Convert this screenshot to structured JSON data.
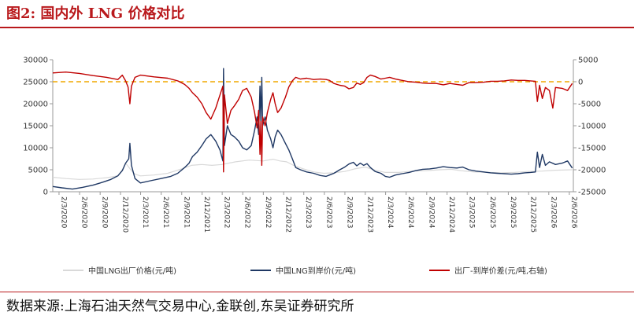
{
  "figure_title": "图2:  国内外 LNG 价格对比",
  "source_text": "数据来源:上海石油天然气交易中心,金联创,东吴证券研究所",
  "colors": {
    "title_red": "#b9191c",
    "ex_factory": "#d9d9d9",
    "landed": "#1f3864",
    "spread": "#c00000",
    "zero_line": "#f0a800"
  },
  "chart_data": {
    "type": "line",
    "title": "",
    "xlabel": "",
    "ylabel": "",
    "x_ticks": [
      "2/3/2020",
      "2/6/2020",
      "2/9/2020",
      "2/12/2020",
      "2/3/2021",
      "2/6/2021",
      "2/9/2021",
      "2/12/2021",
      "2/3/2022",
      "2/6/2022",
      "2/9/2022",
      "2/12/2022",
      "2/3/2023",
      "2/6/2023",
      "2/9/2023",
      "2/12/2023",
      "2/3/2024",
      "2/6/2024",
      "2/9/2024",
      "2/12/2024",
      "2/3/2025",
      "2/6/2025",
      "2/9/2025",
      "2/12/2025",
      "2/3/2026",
      "2/6/2026"
    ],
    "x_range": [
      "2020-02-03",
      "2026-06-20"
    ],
    "ylim_left": [
      0,
      30000
    ],
    "yticks_left": [
      "0",
      "5000",
      "10000",
      "15000",
      "20000",
      "25000",
      "30000"
    ],
    "ylim_right": [
      -25000,
      5000
    ],
    "yticks_right": [
      "-25000",
      "-20000",
      "-15000",
      "-10000",
      "-5000",
      "0",
      "5000"
    ],
    "legend_position": "bottom",
    "reference_line": {
      "axis": "right",
      "value": 0,
      "style": "dashed"
    },
    "series": [
      {
        "name": "中国LNG出厂价格(元/吨)",
        "axis": "left",
        "color": "#d9d9d9",
        "points": [
          [
            "2020-02-03",
            3300
          ],
          [
            "2020-04-01",
            3000
          ],
          [
            "2020-06-01",
            2800
          ],
          [
            "2020-08-01",
            2900
          ],
          [
            "2020-10-01",
            3200
          ],
          [
            "2020-11-20",
            3600
          ],
          [
            "2020-12-10",
            5000
          ],
          [
            "2020-12-25",
            6500
          ],
          [
            "2021-01-05",
            5800
          ],
          [
            "2021-01-20",
            4800
          ],
          [
            "2021-02-05",
            4000
          ],
          [
            "2021-03-01",
            3600
          ],
          [
            "2021-05-01",
            3800
          ],
          [
            "2021-07-01",
            4200
          ],
          [
            "2021-09-01",
            5200
          ],
          [
            "2021-10-15",
            6000
          ],
          [
            "2021-12-01",
            6200
          ],
          [
            "2022-01-15",
            6000
          ],
          [
            "2022-03-01",
            6200
          ],
          [
            "2022-05-01",
            6800
          ],
          [
            "2022-07-01",
            7200
          ],
          [
            "2022-09-01",
            7000
          ],
          [
            "2022-10-15",
            7400
          ],
          [
            "2022-11-15",
            7000
          ],
          [
            "2022-12-15",
            6800
          ],
          [
            "2023-01-15",
            6000
          ],
          [
            "2023-03-01",
            5200
          ],
          [
            "2023-04-15",
            4500
          ],
          [
            "2023-06-01",
            4200
          ],
          [
            "2023-07-15",
            4300
          ],
          [
            "2023-09-01",
            4600
          ],
          [
            "2023-10-15",
            5200
          ],
          [
            "2023-12-01",
            5600
          ],
          [
            "2024-01-15",
            4900
          ],
          [
            "2024-03-01",
            4400
          ],
          [
            "2024-05-01",
            4400
          ],
          [
            "2024-07-01",
            4700
          ],
          [
            "2024-09-01",
            4800
          ],
          [
            "2024-11-01",
            5000
          ],
          [
            "2024-12-20",
            5100
          ],
          [
            "2025-02-01",
            4800
          ],
          [
            "2025-04-01",
            4500
          ],
          [
            "2025-06-01",
            4400
          ],
          [
            "2025-08-01",
            4300
          ],
          [
            "2025-10-01",
            4400
          ],
          [
            "2025-12-01",
            4600
          ],
          [
            "2026-02-01",
            4700
          ],
          [
            "2026-04-01",
            4900
          ],
          [
            "2026-06-15",
            5000
          ]
        ]
      },
      {
        "name": "中国LNG到岸价(元/吨)",
        "axis": "left",
        "color": "#1f3864",
        "points": [
          [
            "2020-02-03",
            1200
          ],
          [
            "2020-03-15",
            900
          ],
          [
            "2020-05-01",
            600
          ],
          [
            "2020-06-15",
            1000
          ],
          [
            "2020-08-01",
            1500
          ],
          [
            "2020-09-15",
            2200
          ],
          [
            "2020-10-20",
            2800
          ],
          [
            "2020-11-20",
            3600
          ],
          [
            "2020-12-10",
            4800
          ],
          [
            "2020-12-25",
            6500
          ],
          [
            "2021-01-08",
            7500
          ],
          [
            "2021-01-13",
            11000
          ],
          [
            "2021-01-20",
            6000
          ],
          [
            "2021-02-05",
            3000
          ],
          [
            "2021-03-01",
            2000
          ],
          [
            "2021-04-15",
            2500
          ],
          [
            "2021-06-01",
            3000
          ],
          [
            "2021-07-15",
            3500
          ],
          [
            "2021-08-15",
            4200
          ],
          [
            "2021-09-15",
            5500
          ],
          [
            "2021-10-05",
            6500
          ],
          [
            "2021-10-20",
            8000
          ],
          [
            "2021-11-10",
            9000
          ],
          [
            "2021-12-01",
            10500
          ],
          [
            "2021-12-20",
            12000
          ],
          [
            "2022-01-10",
            13000
          ],
          [
            "2022-02-01",
            11500
          ],
          [
            "2022-02-20",
            9500
          ],
          [
            "2022-03-05",
            7000
          ],
          [
            "2022-03-08",
            28000
          ],
          [
            "2022-03-12",
            10500
          ],
          [
            "2022-03-25",
            15000
          ],
          [
            "2022-04-10",
            13000
          ],
          [
            "2022-04-25",
            12500
          ],
          [
            "2022-05-15",
            11500
          ],
          [
            "2022-06-01",
            10000
          ],
          [
            "2022-06-20",
            9500
          ],
          [
            "2022-07-10",
            10500
          ],
          [
            "2022-07-25",
            14000
          ],
          [
            "2022-08-05",
            17000
          ],
          [
            "2022-08-12",
            13000
          ],
          [
            "2022-08-18",
            24000
          ],
          [
            "2022-08-22",
            16000
          ],
          [
            "2022-08-26",
            26000
          ],
          [
            "2022-08-30",
            15000
          ],
          [
            "2022-09-10",
            17000
          ],
          [
            "2022-09-20",
            14000
          ],
          [
            "2022-10-05",
            12000
          ],
          [
            "2022-10-15",
            10000
          ],
          [
            "2022-10-25",
            12500
          ],
          [
            "2022-11-05",
            14000
          ],
          [
            "2022-11-20",
            13000
          ],
          [
            "2022-12-10",
            11000
          ],
          [
            "2022-12-25",
            9500
          ],
          [
            "2023-01-10",
            7500
          ],
          [
            "2023-01-25",
            5500
          ],
          [
            "2023-02-15",
            5000
          ],
          [
            "2023-03-15",
            4500
          ],
          [
            "2023-04-15",
            4200
          ],
          [
            "2023-05-15",
            3700
          ],
          [
            "2023-06-10",
            3500
          ],
          [
            "2023-06-25",
            3800
          ],
          [
            "2023-07-15",
            4200
          ],
          [
            "2023-08-10",
            5000
          ],
          [
            "2023-09-01",
            5600
          ],
          [
            "2023-09-20",
            6300
          ],
          [
            "2023-10-10",
            6700
          ],
          [
            "2023-10-25",
            5900
          ],
          [
            "2023-11-10",
            6500
          ],
          [
            "2023-11-25",
            6000
          ],
          [
            "2023-12-10",
            6400
          ],
          [
            "2023-12-25",
            5500
          ],
          [
            "2024-01-15",
            4600
          ],
          [
            "2024-02-10",
            4200
          ],
          [
            "2024-03-01",
            3500
          ],
          [
            "2024-03-20",
            3300
          ],
          [
            "2024-04-15",
            3800
          ],
          [
            "2024-05-15",
            4100
          ],
          [
            "2024-06-15",
            4400
          ],
          [
            "2024-07-15",
            4800
          ],
          [
            "2024-08-15",
            5100
          ],
          [
            "2024-09-15",
            5200
          ],
          [
            "2024-10-15",
            5400
          ],
          [
            "2024-11-15",
            5700
          ],
          [
            "2024-12-15",
            5500
          ],
          [
            "2025-01-15",
            5400
          ],
          [
            "2025-02-10",
            5600
          ],
          [
            "2025-03-10",
            5000
          ],
          [
            "2025-04-10",
            4700
          ],
          [
            "2025-05-15",
            4500
          ],
          [
            "2025-06-15",
            4300
          ],
          [
            "2025-07-15",
            4200
          ],
          [
            "2025-08-15",
            4100
          ],
          [
            "2025-09-15",
            4000
          ],
          [
            "2025-10-15",
            4100
          ],
          [
            "2025-11-15",
            4300
          ],
          [
            "2025-12-10",
            4400
          ],
          [
            "2026-01-01",
            4500
          ],
          [
            "2026-01-10",
            9000
          ],
          [
            "2026-01-20",
            5500
          ],
          [
            "2026-02-01",
            8500
          ],
          [
            "2026-02-15",
            6000
          ],
          [
            "2026-03-05",
            6800
          ],
          [
            "2026-04-01",
            6200
          ],
          [
            "2026-05-01",
            6500
          ],
          [
            "2026-05-25",
            7000
          ],
          [
            "2026-06-15",
            5400
          ]
        ]
      },
      {
        "name": "出厂-到岸价差(元/吨,右轴)",
        "axis": "right",
        "color": "#c00000",
        "points": [
          [
            "2020-02-03",
            2000
          ],
          [
            "2020-04-01",
            2200
          ],
          [
            "2020-06-01",
            1900
          ],
          [
            "2020-08-01",
            1400
          ],
          [
            "2020-10-01",
            1000
          ],
          [
            "2020-11-20",
            500
          ],
          [
            "2020-12-10",
            1500
          ],
          [
            "2020-12-25",
            200
          ],
          [
            "2021-01-05",
            -1200
          ],
          [
            "2021-01-13",
            -5000
          ],
          [
            "2021-01-20",
            -1000
          ],
          [
            "2021-02-05",
            1000
          ],
          [
            "2021-03-01",
            1500
          ],
          [
            "2021-05-01",
            1100
          ],
          [
            "2021-07-01",
            800
          ],
          [
            "2021-08-15",
            200
          ],
          [
            "2021-09-15",
            -600
          ],
          [
            "2021-10-05",
            -1500
          ],
          [
            "2021-10-20",
            -2500
          ],
          [
            "2021-11-10",
            -3500
          ],
          [
            "2021-12-01",
            -5000
          ],
          [
            "2021-12-20",
            -7000
          ],
          [
            "2022-01-10",
            -8500
          ],
          [
            "2022-02-01",
            -6000
          ],
          [
            "2022-02-20",
            -3000
          ],
          [
            "2022-03-05",
            -1000
          ],
          [
            "2022-03-08",
            -20500
          ],
          [
            "2022-03-12",
            -3000
          ],
          [
            "2022-03-25",
            -9500
          ],
          [
            "2022-04-10",
            -6500
          ],
          [
            "2022-04-25",
            -5500
          ],
          [
            "2022-05-15",
            -4000
          ],
          [
            "2022-06-01",
            -2000
          ],
          [
            "2022-06-20",
            -1500
          ],
          [
            "2022-07-10",
            -3500
          ],
          [
            "2022-07-25",
            -7000
          ],
          [
            "2022-08-05",
            -10500
          ],
          [
            "2022-08-12",
            -6500
          ],
          [
            "2022-08-18",
            -16500
          ],
          [
            "2022-08-22",
            -9000
          ],
          [
            "2022-08-26",
            -19000
          ],
          [
            "2022-08-30",
            -8000
          ],
          [
            "2022-09-10",
            -10000
          ],
          [
            "2022-09-20",
            -7000
          ],
          [
            "2022-10-05",
            -4000
          ],
          [
            "2022-10-15",
            -2500
          ],
          [
            "2022-10-25",
            -5000
          ],
          [
            "2022-11-05",
            -7000
          ],
          [
            "2022-11-20",
            -6000
          ],
          [
            "2022-12-10",
            -3500
          ],
          [
            "2022-12-25",
            -1200
          ],
          [
            "2023-01-10",
            200
          ],
          [
            "2023-01-25",
            1000
          ],
          [
            "2023-02-15",
            600
          ],
          [
            "2023-03-15",
            800
          ],
          [
            "2023-04-15",
            500
          ],
          [
            "2023-05-15",
            600
          ],
          [
            "2023-06-10",
            500
          ],
          [
            "2023-06-25",
            300
          ],
          [
            "2023-07-15",
            -400
          ],
          [
            "2023-08-10",
            -800
          ],
          [
            "2023-09-01",
            -1000
          ],
          [
            "2023-09-20",
            -1600
          ],
          [
            "2023-10-10",
            -1300
          ],
          [
            "2023-10-25",
            -300
          ],
          [
            "2023-11-10",
            -600
          ],
          [
            "2023-11-25",
            -200
          ],
          [
            "2023-12-10",
            1000
          ],
          [
            "2023-12-25",
            1500
          ],
          [
            "2024-01-15",
            1200
          ],
          [
            "2024-02-10",
            600
          ],
          [
            "2024-03-01",
            800
          ],
          [
            "2024-03-20",
            1000
          ],
          [
            "2024-04-15",
            600
          ],
          [
            "2024-05-15",
            300
          ],
          [
            "2024-06-15",
            0
          ],
          [
            "2024-07-15",
            -100
          ],
          [
            "2024-08-15",
            -300
          ],
          [
            "2024-09-15",
            -400
          ],
          [
            "2024-10-15",
            -400
          ],
          [
            "2024-11-15",
            -700
          ],
          [
            "2024-12-15",
            -400
          ],
          [
            "2025-01-15",
            -600
          ],
          [
            "2025-02-10",
            -800
          ],
          [
            "2025-03-10",
            -200
          ],
          [
            "2025-04-10",
            -200
          ],
          [
            "2025-05-15",
            -100
          ],
          [
            "2025-06-15",
            100
          ],
          [
            "2025-07-15",
            100
          ],
          [
            "2025-08-15",
            200
          ],
          [
            "2025-09-15",
            400
          ],
          [
            "2025-10-15",
            300
          ],
          [
            "2025-11-15",
            300
          ],
          [
            "2025-12-10",
            200
          ],
          [
            "2026-01-01",
            100
          ],
          [
            "2026-01-10",
            -4500
          ],
          [
            "2026-01-20",
            -800
          ],
          [
            "2026-02-01",
            -3800
          ],
          [
            "2026-02-15",
            -1300
          ],
          [
            "2026-03-05",
            -2000
          ],
          [
            "2026-03-20",
            -6000
          ],
          [
            "2026-04-01",
            -1300
          ],
          [
            "2026-05-01",
            -1500
          ],
          [
            "2026-05-25",
            -2000
          ],
          [
            "2026-06-15",
            -400
          ]
        ]
      }
    ]
  }
}
